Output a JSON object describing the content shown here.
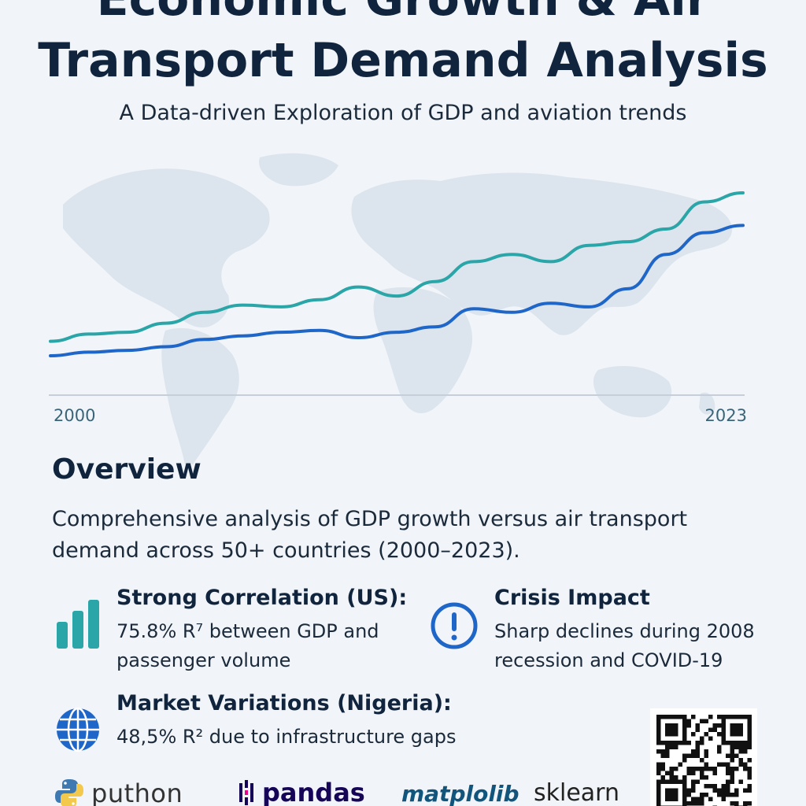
{
  "header": {
    "title_line_1": "Economic Growth & Air",
    "title_line_2": "Transport Demand Analysis",
    "subtitle": "A Data-driven Exploration of GDP and aviation trends"
  },
  "chart_data": {
    "type": "line",
    "x_range": [
      "2000",
      "2023"
    ],
    "tick_labels": [
      "2000",
      "2023"
    ],
    "series": [
      {
        "color": "#2aa5a8",
        "values": [
          0.08,
          0.12,
          0.13,
          0.18,
          0.24,
          0.28,
          0.27,
          0.31,
          0.38,
          0.33,
          0.41,
          0.52,
          0.56,
          0.52,
          0.61,
          0.63,
          0.7,
          0.85,
          0.9
        ]
      },
      {
        "color": "#1f66c9",
        "values": [
          0.0,
          0.02,
          0.03,
          0.05,
          0.09,
          0.11,
          0.13,
          0.14,
          0.1,
          0.13,
          0.16,
          0.26,
          0.24,
          0.29,
          0.27,
          0.37,
          0.56,
          0.68,
          0.72
        ]
      }
    ],
    "grid": false,
    "legend": "none"
  },
  "overview": {
    "heading": "Overview",
    "text": "Comprehensive analysis of GDP growth versus air transport demand across 50+ countries (2000–2023)."
  },
  "features": {
    "correlation": {
      "icon": "bar-chart-icon",
      "title": "Strong Correlation (US):",
      "text": "75.8% R⁷ between GDP and passenger volume"
    },
    "crisis": {
      "icon": "alert-icon",
      "title": "Crisis Impact",
      "text": "Sharp declines during 2008 recession and COVID-19"
    },
    "market": {
      "icon": "globe-icon",
      "title": "Market Variations (Nigeria):",
      "text": "48,5% R² due to infrastructure gaps"
    }
  },
  "logos": {
    "python": "puthon",
    "pandas": "pandas",
    "matplotlib": "matplolib",
    "sklearn": "sklearn"
  },
  "colors": {
    "background": "#f1f4f8",
    "title": "#10253d",
    "teal": "#2aa5a8",
    "blue": "#1f66c9",
    "map": "#dde5ee"
  }
}
